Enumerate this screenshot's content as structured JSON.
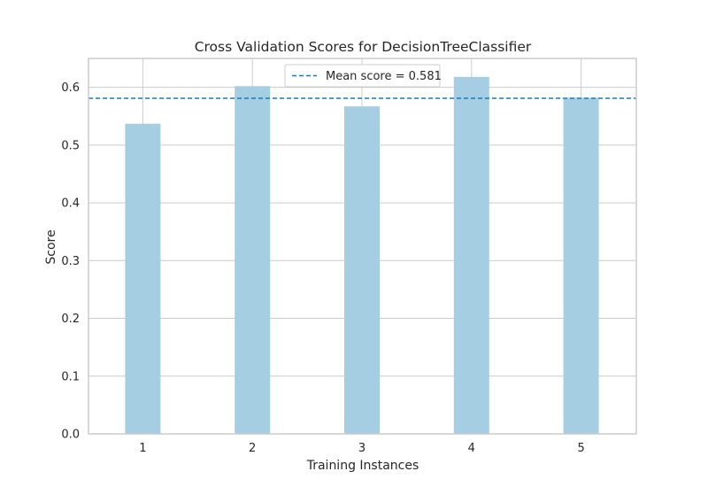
{
  "chart_data": {
    "type": "bar",
    "title": "Cross Validation Scores for DecisionTreeClassifier",
    "xlabel": "Training Instances",
    "ylabel": "Score",
    "categories": [
      "1",
      "2",
      "3",
      "4",
      "5"
    ],
    "values": [
      0.537,
      0.602,
      0.567,
      0.618,
      0.582
    ],
    "ylim": [
      0,
      0.65
    ],
    "yticks": [
      "0.0",
      "0.1",
      "0.2",
      "0.3",
      "0.4",
      "0.5",
      "0.6"
    ],
    "grid": true,
    "mean_line": {
      "value": 0.581,
      "label": "Mean score = 0.581"
    },
    "legend_position": "top-center",
    "colors": {
      "bar": "#a6cee3",
      "mean_line": "#1f78b4",
      "grid": "#cccccc",
      "axes_edge": "#cccccc",
      "text": "#262626"
    }
  }
}
